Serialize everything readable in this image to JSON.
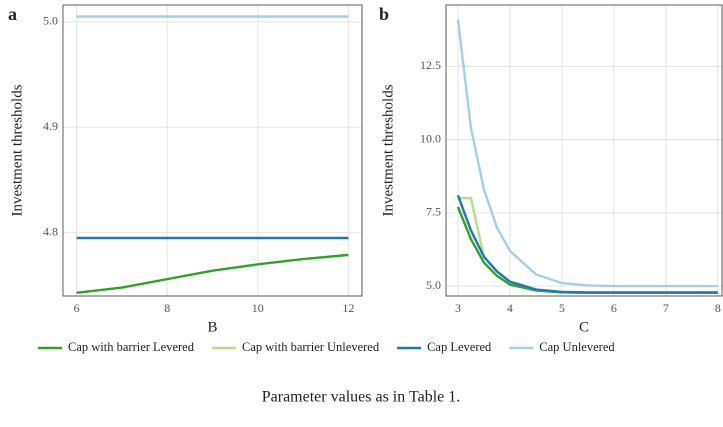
{
  "chart_data": [
    {
      "type": "line",
      "title": "a",
      "xlabel": "B",
      "ylabel": "Investment thresholds",
      "x": [
        6,
        7,
        8,
        9,
        10,
        11,
        12
      ],
      "xlim": [
        5.7,
        12.3
      ],
      "xticks": [
        6,
        8,
        10,
        12
      ],
      "ylim": [
        4.74,
        5.016
      ],
      "yticks": [
        4.8,
        4.9,
        {
          "value": 5.0,
          "label": "5.0"
        }
      ],
      "grid": true,
      "series": [
        {
          "name": "Cap with barrier Levered",
          "color": "#33a02c",
          "values": [
            4.743,
            4.748,
            4.756,
            4.764,
            4.77,
            4.775,
            4.779
          ]
        },
        {
          "name": "Cap with barrier Unlevered",
          "color": "#b2df8a",
          "values": [
            5.005,
            5.005,
            5.005,
            5.005,
            5.005,
            5.005,
            5.005
          ]
        },
        {
          "name": "Cap Levered",
          "color": "#1f78b4",
          "values": [
            4.795,
            4.795,
            4.795,
            4.795,
            4.795,
            4.795,
            4.795
          ]
        },
        {
          "name": "Cap Unlevered",
          "color": "#a6cee3",
          "values": [
            5.005,
            5.005,
            5.005,
            5.005,
            5.005,
            5.005,
            5.005
          ]
        }
      ]
    },
    {
      "type": "line",
      "title": "b",
      "xlabel": "C",
      "ylabel": "Investment thresholds",
      "x": [
        3,
        3.25,
        3.5,
        3.75,
        4,
        4.5,
        5,
        5.5,
        6,
        7,
        8
      ],
      "xlim": [
        2.77,
        8.08
      ],
      "xticks": [
        3,
        4,
        5,
        6,
        7,
        8
      ],
      "ylim": [
        4.66,
        14.6
      ],
      "yticks": [
        {
          "value": 5.0,
          "label": "5.0"
        },
        7.5,
        {
          "value": 10.0,
          "label": "10.0"
        },
        12.5
      ],
      "grid": true,
      "series": [
        {
          "name": "Cap with barrier Levered",
          "color": "#33a02c",
          "values": [
            7.7,
            6.6,
            5.8,
            5.35,
            5.05,
            4.85,
            4.78,
            4.77,
            4.77,
            4.77,
            4.77
          ]
        },
        {
          "name": "Cap with barrier Unlevered",
          "color": "#b2df8a",
          "values": [
            8.0,
            8.0,
            6.0,
            5.5,
            5.15,
            4.88,
            4.8,
            4.78,
            4.78,
            4.78,
            4.78
          ]
        },
        {
          "name": "Cap Levered",
          "color": "#1f78b4",
          "values": [
            8.1,
            6.9,
            6.0,
            5.5,
            5.15,
            4.88,
            4.8,
            4.78,
            4.78,
            4.78,
            4.78
          ]
        },
        {
          "name": "Cap Unlevered",
          "color": "#a6cee3",
          "values": [
            14.1,
            10.4,
            8.3,
            7.0,
            6.2,
            5.4,
            5.1,
            5.02,
            5.0,
            5.0,
            5.0
          ]
        }
      ]
    }
  ],
  "caption": "Parameter values as in Table 1."
}
